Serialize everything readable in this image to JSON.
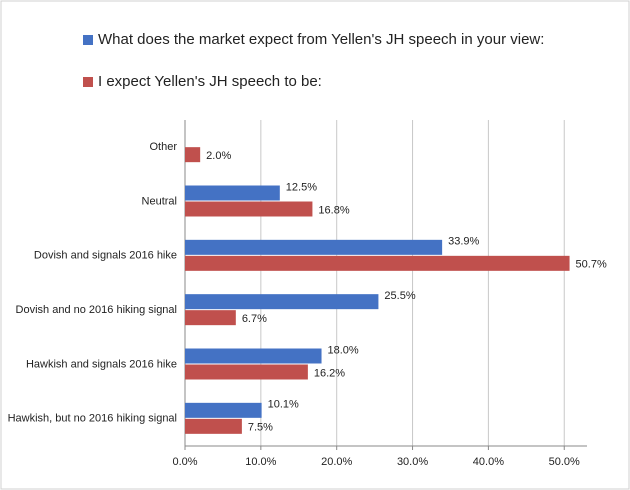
{
  "chart_data": {
    "type": "hbar",
    "categories": [
      "Other",
      "Neutral",
      "Dovish and signals 2016 hike",
      "Dovish and no 2016 hiking signal",
      "Hawkish and signals 2016 hike",
      "Hawkish, but no 2016 hiking signal"
    ],
    "series": [
      {
        "name": "What does the market expect from Yellen's JH speech in your view:",
        "color": "#4472c4",
        "values": [
          null,
          12.5,
          33.9,
          25.5,
          18.0,
          10.1
        ],
        "value_labels": [
          null,
          "12.5%",
          "33.9%",
          "25.5%",
          "18.0%",
          "10.1%"
        ]
      },
      {
        "name": "I expect Yellen's JH speech to be:",
        "color": "#c0504d",
        "values": [
          2.0,
          16.8,
          50.7,
          6.7,
          16.2,
          7.5
        ],
        "value_labels": [
          "2.0%",
          "16.8%",
          "50.7%",
          "6.7%",
          "16.2%",
          "7.5%"
        ]
      }
    ],
    "xlim": [
      0,
      53
    ],
    "xticks": [
      {
        "value": 0,
        "label": "0.0%"
      },
      {
        "value": 10,
        "label": "10.0%"
      },
      {
        "value": 20,
        "label": "20.0%"
      },
      {
        "value": 30,
        "label": "30.0%"
      },
      {
        "value": 40,
        "label": "40.0%"
      },
      {
        "value": 50,
        "label": "50.0%"
      }
    ],
    "grid": true
  }
}
